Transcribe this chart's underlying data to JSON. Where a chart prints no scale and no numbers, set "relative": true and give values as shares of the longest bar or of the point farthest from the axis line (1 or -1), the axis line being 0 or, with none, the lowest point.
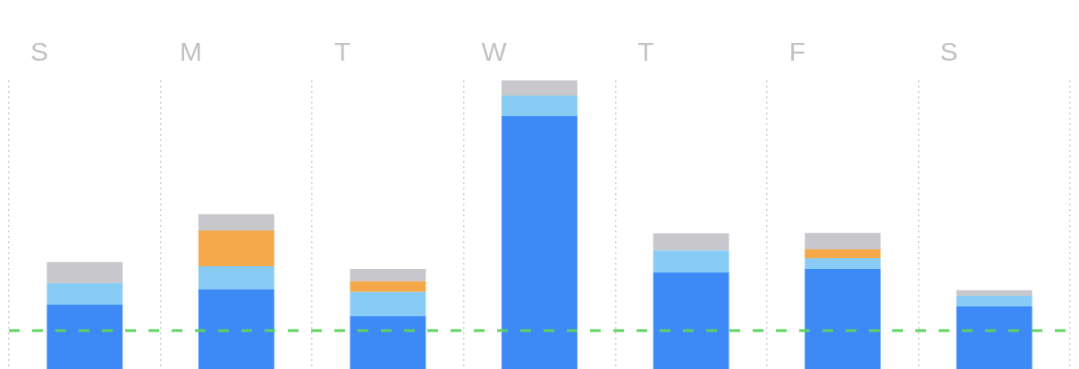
{
  "chart_data": {
    "type": "bar",
    "relative": true,
    "stacked": true,
    "categories": [
      "S",
      "M",
      "T",
      "W",
      "T",
      "F",
      "S"
    ],
    "series": [
      {
        "color": "#3d8af7",
        "values": [
          0.223,
          0.276,
          0.183,
          0.876,
          0.334,
          0.347,
          0.217
        ]
      },
      {
        "color": "#88ccf5",
        "values": [
          0.074,
          0.08,
          0.084,
          0.071,
          0.077,
          0.037,
          0.037
        ]
      },
      {
        "color": "#f4a84a",
        "values": [
          0,
          0.124,
          0.037,
          0,
          0,
          0.031,
          0
        ]
      },
      {
        "color": "#c8c8cc",
        "values": [
          0.074,
          0.056,
          0.043,
          0.053,
          0.059,
          0.056,
          0.019
        ]
      }
    ],
    "ref_lines": [
      {
        "axis": "y",
        "value": 0.133,
        "color": "#5fd35f",
        "line_style": "dashed"
      }
    ],
    "grid": "x",
    "legend": false,
    "tick_labels": "x"
  }
}
